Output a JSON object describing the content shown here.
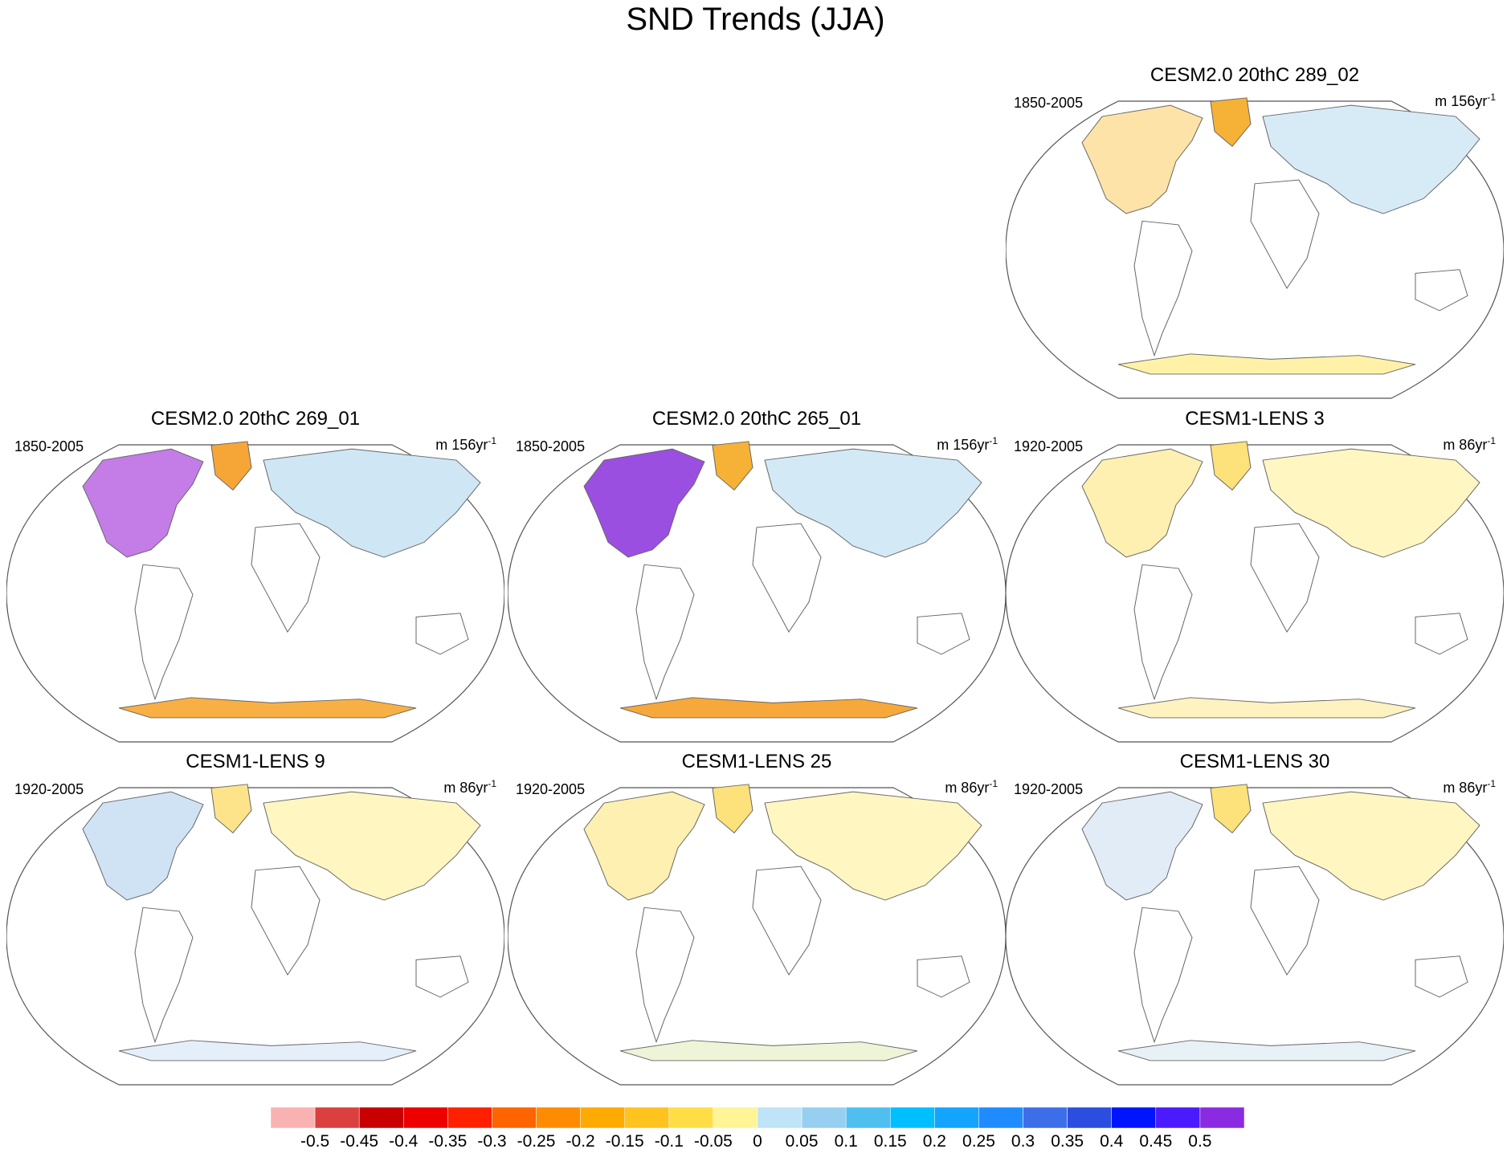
{
  "title": "SND Trends (JJA)",
  "panels": [
    {
      "title": "CESM2.0 20thC 289_02",
      "period": "1850-2005",
      "units_prefix": "m 156yr",
      "units_exp": "-1",
      "slot": "top-right",
      "colors": {
        "north_america": "#fde3a7",
        "greenland": "#f6b236",
        "eurasia": "#d7ebf7",
        "antarctica": "#fff2a8"
      }
    },
    {
      "title": "CESM2.0 20thC 269_01",
      "period": "1850-2005",
      "units_prefix": "m 156yr",
      "units_exp": "-1",
      "slot": "middle-left",
      "colors": {
        "north_america": "#c47ce6",
        "greenland": "#f6a636",
        "eurasia": "#cfe6f5",
        "antarctica": "#f8b045"
      }
    },
    {
      "title": "CESM2.0 20thC 265_01",
      "period": "1850-2005",
      "units_prefix": "m 156yr",
      "units_exp": "-1",
      "slot": "middle-center",
      "colors": {
        "north_america": "#9b4fe0",
        "greenland": "#f6b236",
        "eurasia": "#d4e9f6",
        "antarctica": "#f6a83a"
      }
    },
    {
      "title": "CESM1-LENS 3",
      "period": "1920-2005",
      "units_prefix": "m 86yr",
      "units_exp": "-1",
      "slot": "middle-right",
      "colors": {
        "north_america": "#fdf0b0",
        "greenland": "#fde17a",
        "eurasia": "#fff6c2",
        "antarctica": "#fdf2c0"
      }
    },
    {
      "title": "CESM1-LENS 9",
      "period": "1920-2005",
      "units_prefix": "m 86yr",
      "units_exp": "-1",
      "slot": "bottom-left",
      "colors": {
        "north_america": "#cfe3f5",
        "greenland": "#fde48a",
        "eurasia": "#fff6c2",
        "antarctica": "#e4effa"
      }
    },
    {
      "title": "CESM1-LENS 25",
      "period": "1920-2005",
      "units_prefix": "m 86yr",
      "units_exp": "-1",
      "slot": "bottom-center",
      "colors": {
        "north_america": "#fdf0b0",
        "greenland": "#fde17a",
        "eurasia": "#fff6c2",
        "antarctica": "#eef4d8"
      }
    },
    {
      "title": "CESM1-LENS 30",
      "period": "1920-2005",
      "units_prefix": "m 86yr",
      "units_exp": "-1",
      "slot": "bottom-right",
      "colors": {
        "north_america": "#e2ecf7",
        "greenland": "#fde17a",
        "eurasia": "#fff6c2",
        "antarctica": "#e8f1f5"
      }
    }
  ],
  "chart_data": {
    "type": "heatmap",
    "title": "SND Trends (JJA)",
    "projection": "robinson",
    "colorbar": {
      "orientation": "horizontal",
      "placement": "bottom",
      "ticks": [
        "-0.5",
        "-0.45",
        "-0.4",
        "-0.35",
        "-0.3",
        "-0.25",
        "-0.2",
        "-0.15",
        "-0.1",
        "-0.05",
        "0",
        "0.05",
        "0.1",
        "0.15",
        "0.2",
        "0.25",
        "0.3",
        "0.35",
        "0.4",
        "0.45",
        "0.5"
      ],
      "colors": [
        "#f9b2b2",
        "#d9403e",
        "#c80000",
        "#ee0000",
        "#ff2000",
        "#ff6400",
        "#ff8c00",
        "#ffaa00",
        "#ffc31e",
        "#ffdd46",
        "#fff496",
        "#bfe3f7",
        "#96cff0",
        "#4fbff0",
        "#00bfff",
        "#13a4ff",
        "#1e8cff",
        "#3d6eea",
        "#2b4ee0",
        "#0014ff",
        "#4b1aff",
        "#8a2be2"
      ]
    },
    "maps": [
      {
        "name": "CESM2.0 20thC 289_02",
        "period": "1850-2005",
        "units": "m 156yr-1"
      },
      {
        "name": "CESM2.0 20thC 269_01",
        "period": "1850-2005",
        "units": "m 156yr-1"
      },
      {
        "name": "CESM2.0 20thC 265_01",
        "period": "1850-2005",
        "units": "m 156yr-1"
      },
      {
        "name": "CESM1-LENS 3",
        "period": "1920-2005",
        "units": "m 86yr-1"
      },
      {
        "name": "CESM1-LENS 9",
        "period": "1920-2005",
        "units": "m 86yr-1"
      },
      {
        "name": "CESM1-LENS 25",
        "period": "1920-2005",
        "units": "m 86yr-1"
      },
      {
        "name": "CESM1-LENS 30",
        "period": "1920-2005",
        "units": "m 86yr-1"
      }
    ]
  }
}
